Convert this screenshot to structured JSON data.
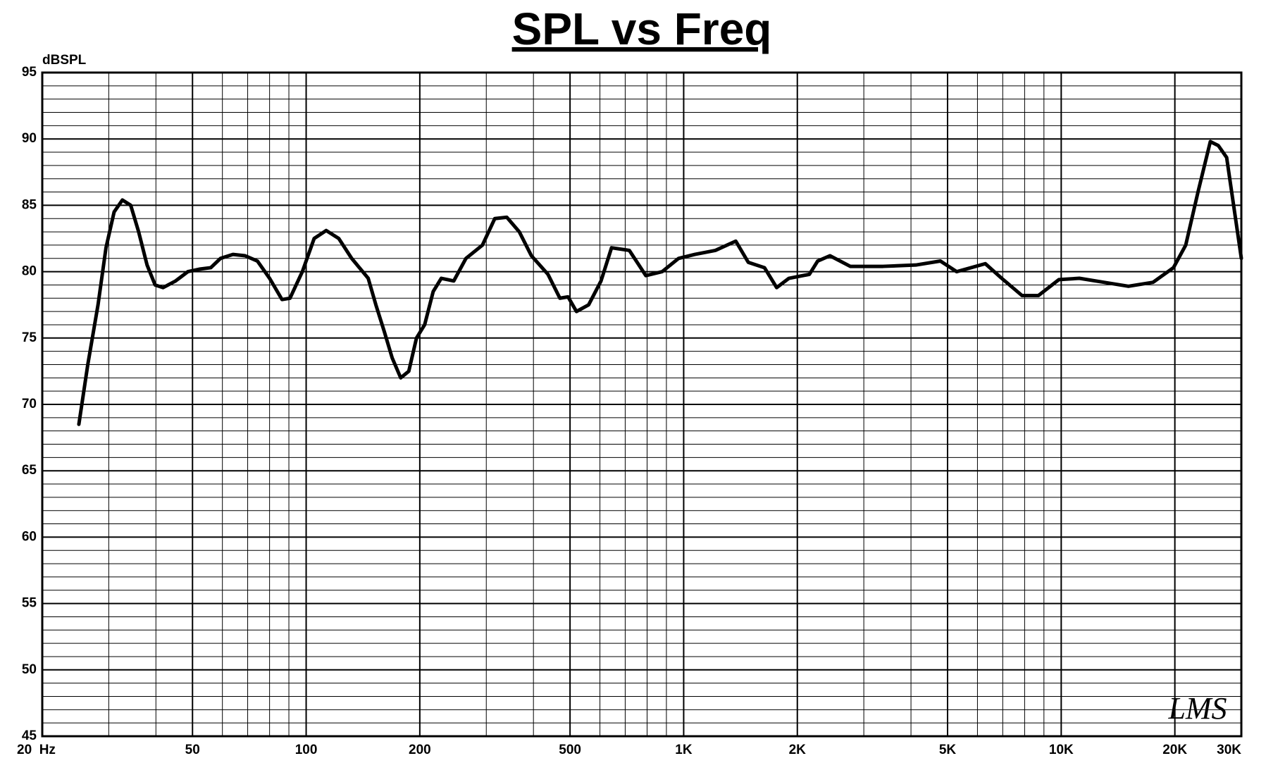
{
  "chart_data": {
    "type": "line",
    "title": "SPL vs Freq",
    "y_axis_label": "dBSPL",
    "watermark": "LMS",
    "xscale": "log",
    "grid": true,
    "xlim": [
      20,
      30000
    ],
    "ylim": [
      45,
      95
    ],
    "xticks": [
      {
        "value": 20,
        "label": "20  Hz"
      },
      50,
      100,
      200,
      500,
      {
        "value": 1000,
        "label": "1K"
      },
      {
        "value": 2000,
        "label": "2K"
      },
      {
        "value": 5000,
        "label": "5K"
      },
      {
        "value": 10000,
        "label": "10K"
      },
      {
        "value": 20000,
        "label": "20K"
      },
      {
        "value": 30000,
        "label": "30K"
      }
    ],
    "yticks": [
      45,
      50,
      55,
      60,
      65,
      70,
      75,
      80,
      85,
      90,
      95
    ],
    "x": [
      25,
      26.4,
      28.1,
      29.5,
      31,
      32.6,
      34.3,
      36,
      37.9,
      39.8,
      41.8,
      45.1,
      48.6,
      52.4,
      55.9,
      59.3,
      64,
      68.9,
      74.3,
      80,
      86.3,
      90.6,
      97.7,
      105,
      113,
      122,
      132,
      146,
      153,
      161,
      169,
      178,
      187,
      196,
      206,
      217,
      228,
      246,
      265,
      293,
      316,
      340,
      367,
      395,
      437,
      470,
      494,
      520,
      560,
      604,
      644,
      718,
      794,
      877,
      969,
      1071,
      1213,
      1374,
      1483,
      1637,
      1763,
      1900,
      2153,
      2264,
      2440,
      2762,
      3373,
      4120,
      4785,
      5286,
      6295,
      6955,
      7874,
      8701,
      9860,
      11170,
      12970,
      15070,
      17510,
      19830,
      21370,
      23030,
      24830,
      26070,
      27430,
      30000
    ],
    "series": [
      {
        "name": "SPL",
        "color": "#000000",
        "values": [
          68.5,
          73,
          77.5,
          81.8,
          84.5,
          85.4,
          85,
          83,
          80.5,
          79,
          78.8,
          79.3,
          80,
          80.2,
          80.3,
          81,
          81.3,
          81.2,
          80.8,
          79.5,
          77.9,
          78,
          80,
          82.5,
          83.1,
          82.5,
          81,
          79.5,
          77.5,
          75.5,
          73.5,
          72,
          72.5,
          75,
          76,
          78.5,
          79.5,
          79.3,
          81,
          82,
          84,
          84.1,
          83,
          81.2,
          79.8,
          78,
          78.1,
          77,
          77.5,
          79.3,
          81.8,
          81.6,
          79.7,
          80,
          81,
          81.3,
          81.6,
          82.3,
          80.7,
          80.3,
          78.8,
          79.5,
          79.8,
          80.8,
          81.2,
          80.4,
          80.4,
          80.5,
          80.8,
          80,
          80.6,
          79.5,
          78.2,
          78.2,
          79.4,
          79.5,
          79.2,
          78.9,
          79.2,
          80.3,
          82,
          86,
          89.8,
          89.5,
          88.6,
          81
        ]
      }
    ]
  }
}
